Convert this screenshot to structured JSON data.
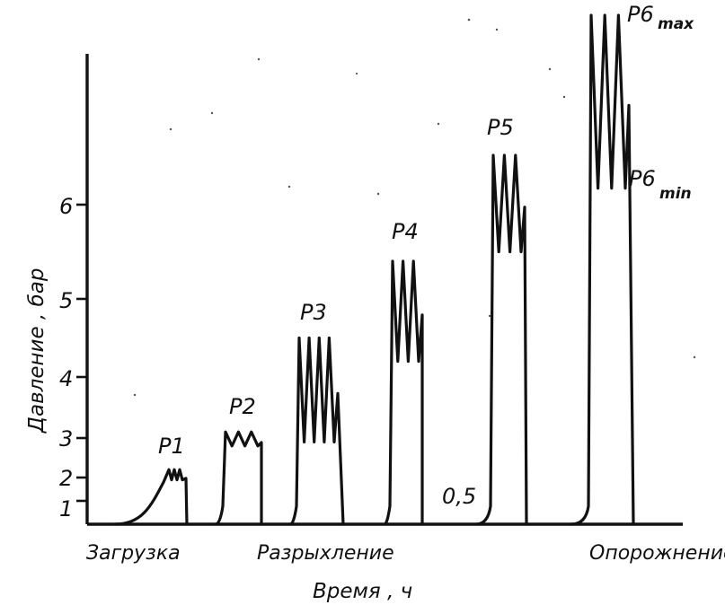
{
  "chart_data": {
    "type": "line",
    "ylabel": "Давление , бар",
    "xlabel": "Время , ч",
    "y_ticks": [
      "1",
      "2",
      "3",
      "4",
      "5",
      "6"
    ],
    "ylim": [
      0,
      6.7
    ],
    "grid": false,
    "phases": [
      "Загрузка",
      "Разрыхление",
      "Опорожнение"
    ],
    "duration_label": "0,5",
    "series": [
      {
        "name": "P1",
        "label": "P1",
        "max": 2.2,
        "min": 1.9,
        "oscillations": 3
      },
      {
        "name": "P2",
        "label": "P2",
        "max": 3.1,
        "min": 2.8,
        "oscillations": 3
      },
      {
        "name": "P3",
        "label": "P3",
        "max": 4.5,
        "min": 2.9,
        "oscillations": 4
      },
      {
        "name": "P4",
        "label": "P4",
        "max": 5.4,
        "min": 4.2,
        "oscillations": 3
      },
      {
        "name": "P5",
        "label": "P5",
        "max": 6.6,
        "min": 5.5,
        "oscillations": 3
      },
      {
        "name": "P6",
        "label": "P6",
        "max": 8.3,
        "min": 6.2,
        "oscillations": 3,
        "max_label": "max",
        "min_label": "min"
      }
    ]
  }
}
